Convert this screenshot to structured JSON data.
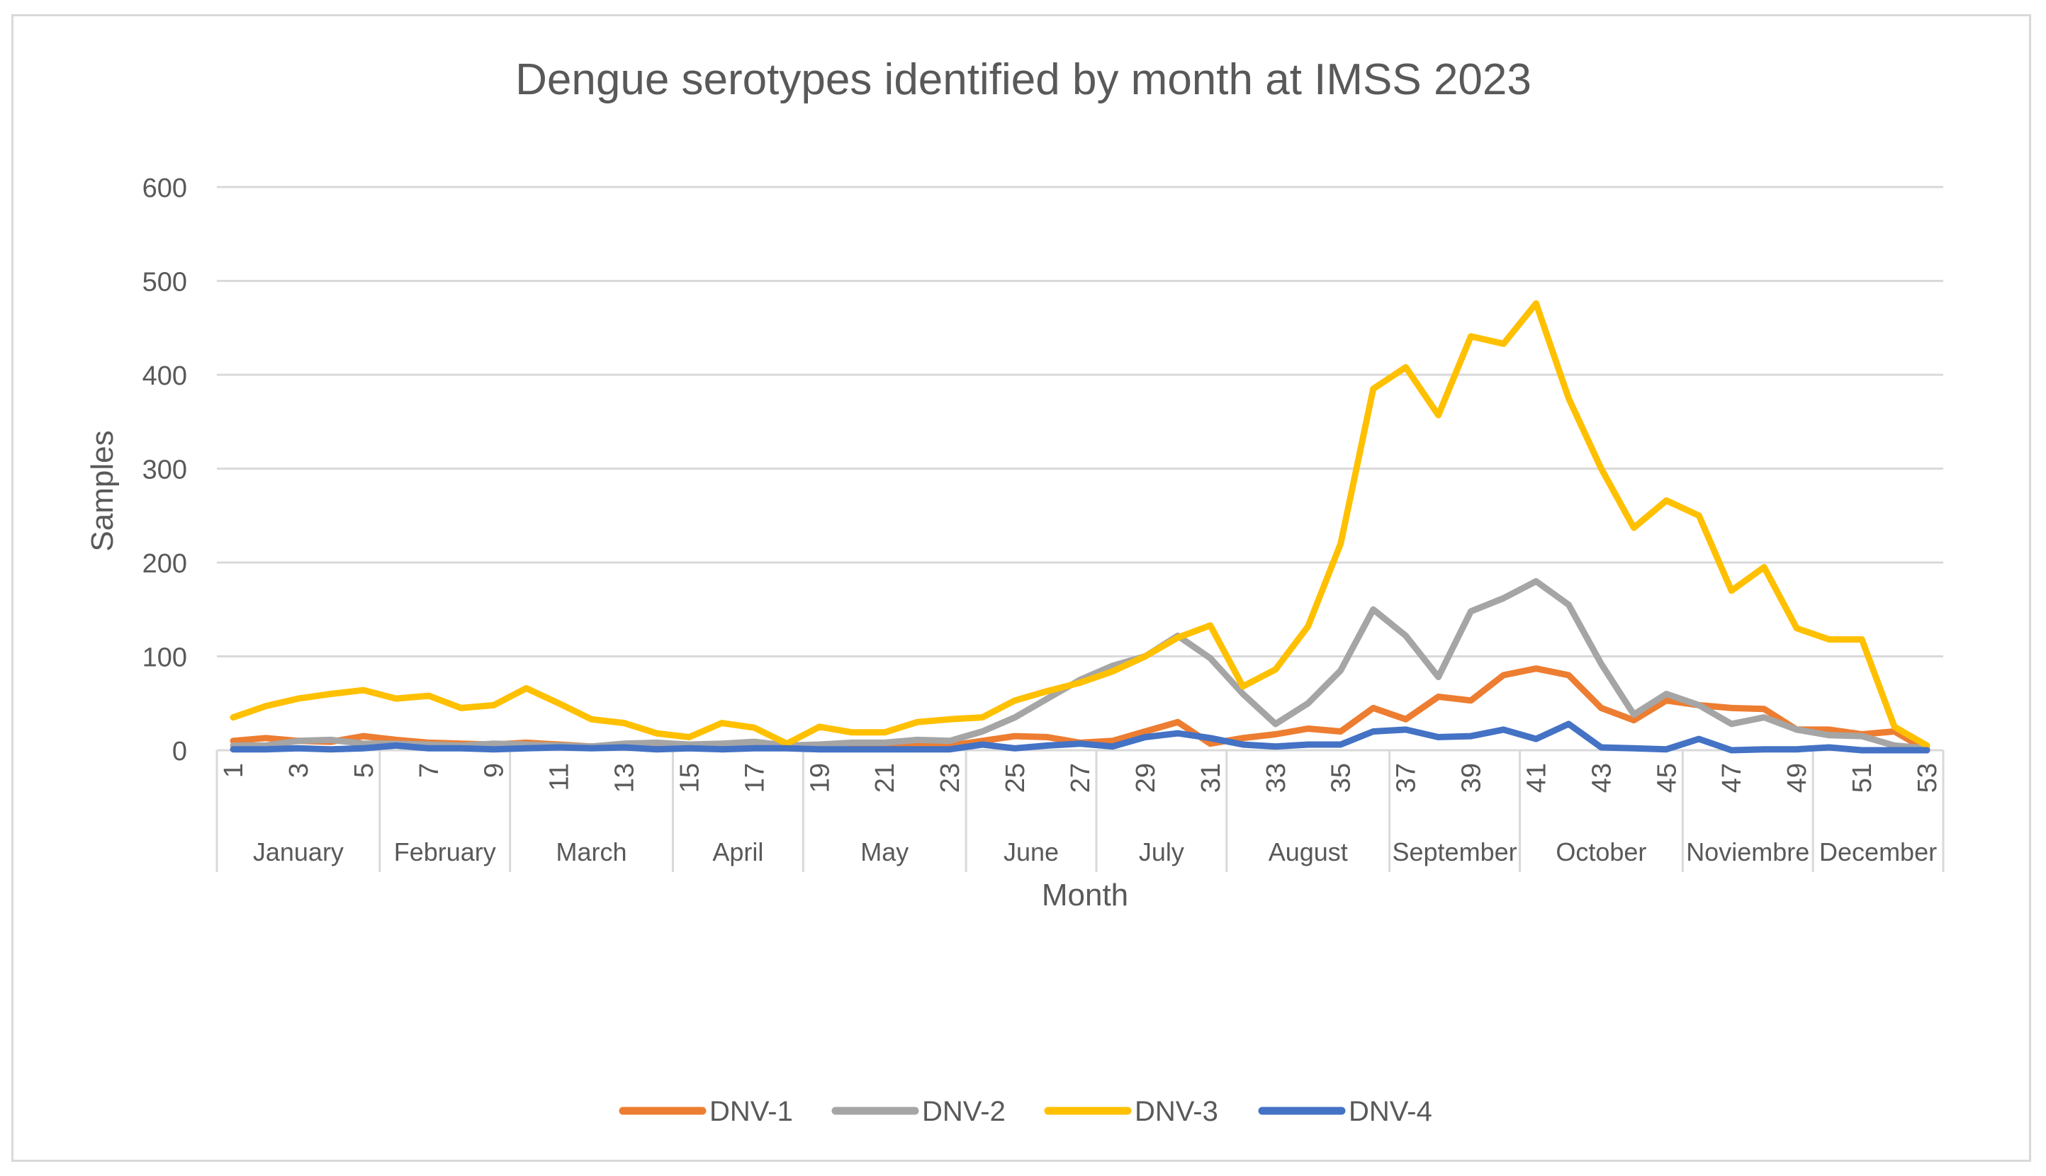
{
  "chart_data": {
    "type": "line",
    "title": "Dengue serotypes identified by month at IMSS 2023",
    "xlabel": "Month",
    "ylabel": "Samples",
    "ylim": [
      0,
      600
    ],
    "yticks": [
      0,
      100,
      200,
      300,
      400,
      500,
      600
    ],
    "grid": true,
    "legend_position": "bottom",
    "x": [
      1,
      2,
      3,
      4,
      5,
      6,
      7,
      8,
      9,
      10,
      11,
      12,
      13,
      14,
      15,
      16,
      17,
      18,
      19,
      20,
      21,
      22,
      23,
      24,
      25,
      26,
      27,
      28,
      29,
      30,
      31,
      32,
      33,
      34,
      35,
      36,
      37,
      38,
      39,
      40,
      41,
      42,
      43,
      44,
      45,
      46,
      47,
      48,
      49,
      50,
      51,
      52,
      53
    ],
    "xtick_labels": [
      "1",
      "3",
      "5",
      "7",
      "9",
      "11",
      "13",
      "15",
      "17",
      "19",
      "21",
      "23",
      "25",
      "27",
      "29",
      "31",
      "33",
      "35",
      "37",
      "39",
      "41",
      "43",
      "45",
      "47",
      "49",
      "51",
      "53"
    ],
    "months": [
      {
        "label": "January",
        "start": 1,
        "end": 5
      },
      {
        "label": "February",
        "start": 6,
        "end": 9
      },
      {
        "label": "March",
        "start": 10,
        "end": 14
      },
      {
        "label": "April",
        "start": 15,
        "end": 18
      },
      {
        "label": "May",
        "start": 19,
        "end": 23
      },
      {
        "label": "June",
        "start": 24,
        "end": 27
      },
      {
        "label": "July",
        "start": 28,
        "end": 31
      },
      {
        "label": "August",
        "start": 32,
        "end": 36
      },
      {
        "label": "September",
        "start": 37,
        "end": 40
      },
      {
        "label": "October",
        "start": 41,
        "end": 45
      },
      {
        "label": "Noviembre",
        "start": 46,
        "end": 49
      },
      {
        "label": "December",
        "start": 50,
        "end": 53
      }
    ],
    "series": [
      {
        "name": "DNV-1",
        "color": "#ed7d31",
        "values": [
          10,
          13,
          10,
          9,
          15,
          11,
          8,
          7,
          6,
          8,
          6,
          4,
          5,
          4,
          5,
          4,
          5,
          3,
          4,
          4,
          4,
          5,
          5,
          10,
          15,
          14,
          8,
          10,
          20,
          30,
          7,
          13,
          17,
          23,
          20,
          45,
          33,
          57,
          53,
          80,
          87,
          80,
          45,
          32,
          53,
          48,
          45,
          44,
          22,
          22,
          17,
          20,
          0
        ]
      },
      {
        "name": "DNV-2",
        "color": "#a5a5a5",
        "values": [
          5,
          5,
          10,
          11,
          7,
          7,
          6,
          5,
          7,
          6,
          5,
          4,
          7,
          8,
          6,
          7,
          9,
          5,
          6,
          8,
          8,
          11,
          10,
          20,
          35,
          55,
          75,
          90,
          100,
          122,
          98,
          60,
          28,
          50,
          85,
          150,
          122,
          78,
          148,
          162,
          180,
          155,
          92,
          38,
          60,
          48,
          28,
          35,
          22,
          16,
          15,
          5,
          2
        ]
      },
      {
        "name": "DNV-3",
        "color": "#ffc000",
        "values": [
          35,
          47,
          55,
          60,
          64,
          55,
          58,
          45,
          48,
          66,
          50,
          33,
          29,
          18,
          14,
          29,
          24,
          7,
          25,
          19,
          19,
          30,
          33,
          35,
          53,
          63,
          72,
          84,
          100,
          120,
          133,
          68,
          86,
          132,
          220,
          385,
          408,
          357,
          441,
          433,
          476,
          375,
          300,
          237,
          266,
          250,
          170,
          195,
          130,
          118,
          118,
          25,
          5
        ]
      },
      {
        "name": "DNV-4",
        "color": "#4472c4",
        "values": [
          1,
          1,
          2,
          1,
          2,
          5,
          2,
          2,
          1,
          2,
          3,
          2,
          3,
          1,
          2,
          1,
          2,
          2,
          1,
          1,
          1,
          1,
          1,
          6,
          2,
          5,
          7,
          4,
          14,
          18,
          13,
          6,
          4,
          6,
          6,
          20,
          22,
          14,
          15,
          22,
          12,
          28,
          3,
          2,
          1,
          12,
          0,
          1,
          1,
          3,
          0,
          0,
          0
        ]
      }
    ]
  },
  "legend": {
    "items": [
      {
        "label": "DNV-1",
        "color": "#ed7d31"
      },
      {
        "label": "DNV-2",
        "color": "#a5a5a5"
      },
      {
        "label": "DNV-3",
        "color": "#ffc000"
      },
      {
        "label": "DNV-4",
        "color": "#4472c4"
      }
    ]
  }
}
